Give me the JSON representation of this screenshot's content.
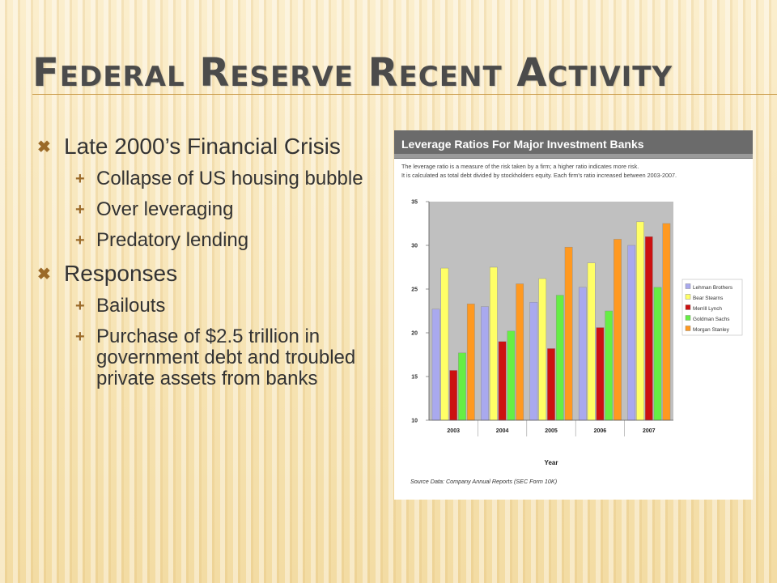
{
  "slide": {
    "title": "Federal Reserve Recent Activity",
    "bullets": [
      {
        "text": "Late 2000’s Financial Crisis",
        "sub": [
          "Collapse of US housing bubble",
          "Over leveraging",
          "Predatory lending"
        ]
      },
      {
        "text": "Responses",
        "sub": [
          "Bailouts",
          "Purchase of $2.5 trillion in government debt and troubled private assets from banks"
        ]
      }
    ]
  },
  "colors": {
    "title": "#4b4b4b",
    "bullet_marker": "#9b6a28",
    "plot_background": "#c0c0c0",
    "header_bar": "#6b6b6b"
  },
  "icons": {
    "level1": "cross-marker-icon",
    "level2": "plus-marker-icon"
  },
  "chart_data": {
    "type": "bar",
    "title": "Leverage Ratios For Major Investment Banks",
    "subtitle": [
      "The leverage ratio is a measure of the risk taken by a firm; a higher ratio indicates more risk.",
      "It is calculated as total debt divided by stockholders equity. Each firm's ratio increased between 2003-2007."
    ],
    "xlabel": "Year",
    "ylabel": "",
    "categories": [
      "2003",
      "2004",
      "2005",
      "2006",
      "2007"
    ],
    "ylim": [
      10,
      35
    ],
    "yticks": [
      10,
      15,
      20,
      25,
      30,
      35
    ],
    "grid": false,
    "legend": "right",
    "source": "Source Data:  Company Annual Reports (SEC Form 10K)",
    "series": [
      {
        "name": "Lehman Brothers",
        "color": "#a9a9ee",
        "values": [
          22.7,
          23.0,
          23.5,
          25.2,
          30.0
        ]
      },
      {
        "name": "Bear Stearns",
        "color": "#ffff66",
        "values": [
          27.4,
          27.5,
          26.2,
          28.0,
          32.7
        ]
      },
      {
        "name": "Merrill Lynch",
        "color": "#cc1111",
        "values": [
          15.7,
          19.0,
          18.2,
          20.6,
          31.0
        ]
      },
      {
        "name": "Goldman Sachs",
        "color": "#66ee44",
        "values": [
          17.7,
          20.2,
          24.3,
          22.5,
          25.2
        ]
      },
      {
        "name": "Morgan Stanley",
        "color": "#ff9920",
        "values": [
          23.3,
          25.6,
          29.8,
          30.7,
          32.5
        ]
      }
    ]
  }
}
